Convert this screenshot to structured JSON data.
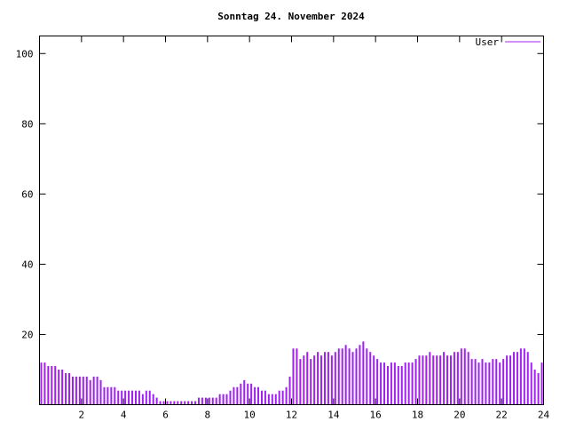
{
  "chart_data": {
    "type": "bar",
    "title": "Sonntag 24. November 2024",
    "legend": "User",
    "xlabel": "",
    "ylabel": "",
    "xlim": [
      0,
      24
    ],
    "ylim": [
      0,
      105
    ],
    "x_ticks": [
      2,
      4,
      6,
      8,
      10,
      12,
      14,
      16,
      18,
      20,
      22,
      24
    ],
    "y_ticks": [
      20,
      40,
      60,
      80,
      100
    ],
    "bar_color": "#a020f0",
    "axis_color": "#000000",
    "background_color": "#ffffff",
    "legend_position": "top-right",
    "grid": false,
    "x_unit": "hour-of-day",
    "sample_interval_minutes": 10,
    "values": [
      12,
      12,
      11,
      11,
      11,
      10,
      10,
      9,
      9,
      8,
      8,
      8,
      8,
      8,
      7,
      8,
      8,
      7,
      5,
      5,
      5,
      5,
      4,
      4,
      4,
      4,
      4,
      4,
      4,
      3,
      4,
      4,
      3,
      2,
      1,
      1,
      1,
      1,
      1,
      1,
      1,
      1,
      1,
      1,
      1,
      2,
      2,
      2,
      2,
      2,
      2,
      3,
      3,
      3,
      4,
      5,
      5,
      6,
      7,
      6,
      6,
      5,
      5,
      4,
      4,
      3,
      3,
      3,
      4,
      4,
      5,
      8,
      16,
      16,
      13,
      14,
      15,
      13,
      14,
      15,
      14,
      15,
      15,
      14,
      15,
      16,
      16,
      17,
      16,
      15,
      16,
      17,
      18,
      16,
      15,
      14,
      13,
      12,
      12,
      11,
      12,
      12,
      11,
      11,
      12,
      12,
      12,
      13,
      14,
      14,
      14,
      15,
      14,
      14,
      14,
      15,
      14,
      14,
      15,
      15,
      16,
      16,
      15,
      13,
      13,
      12,
      13,
      12,
      12,
      13,
      13,
      12,
      13,
      14,
      14,
      15,
      15,
      16,
      16,
      15,
      12,
      10,
      9,
      12
    ]
  }
}
